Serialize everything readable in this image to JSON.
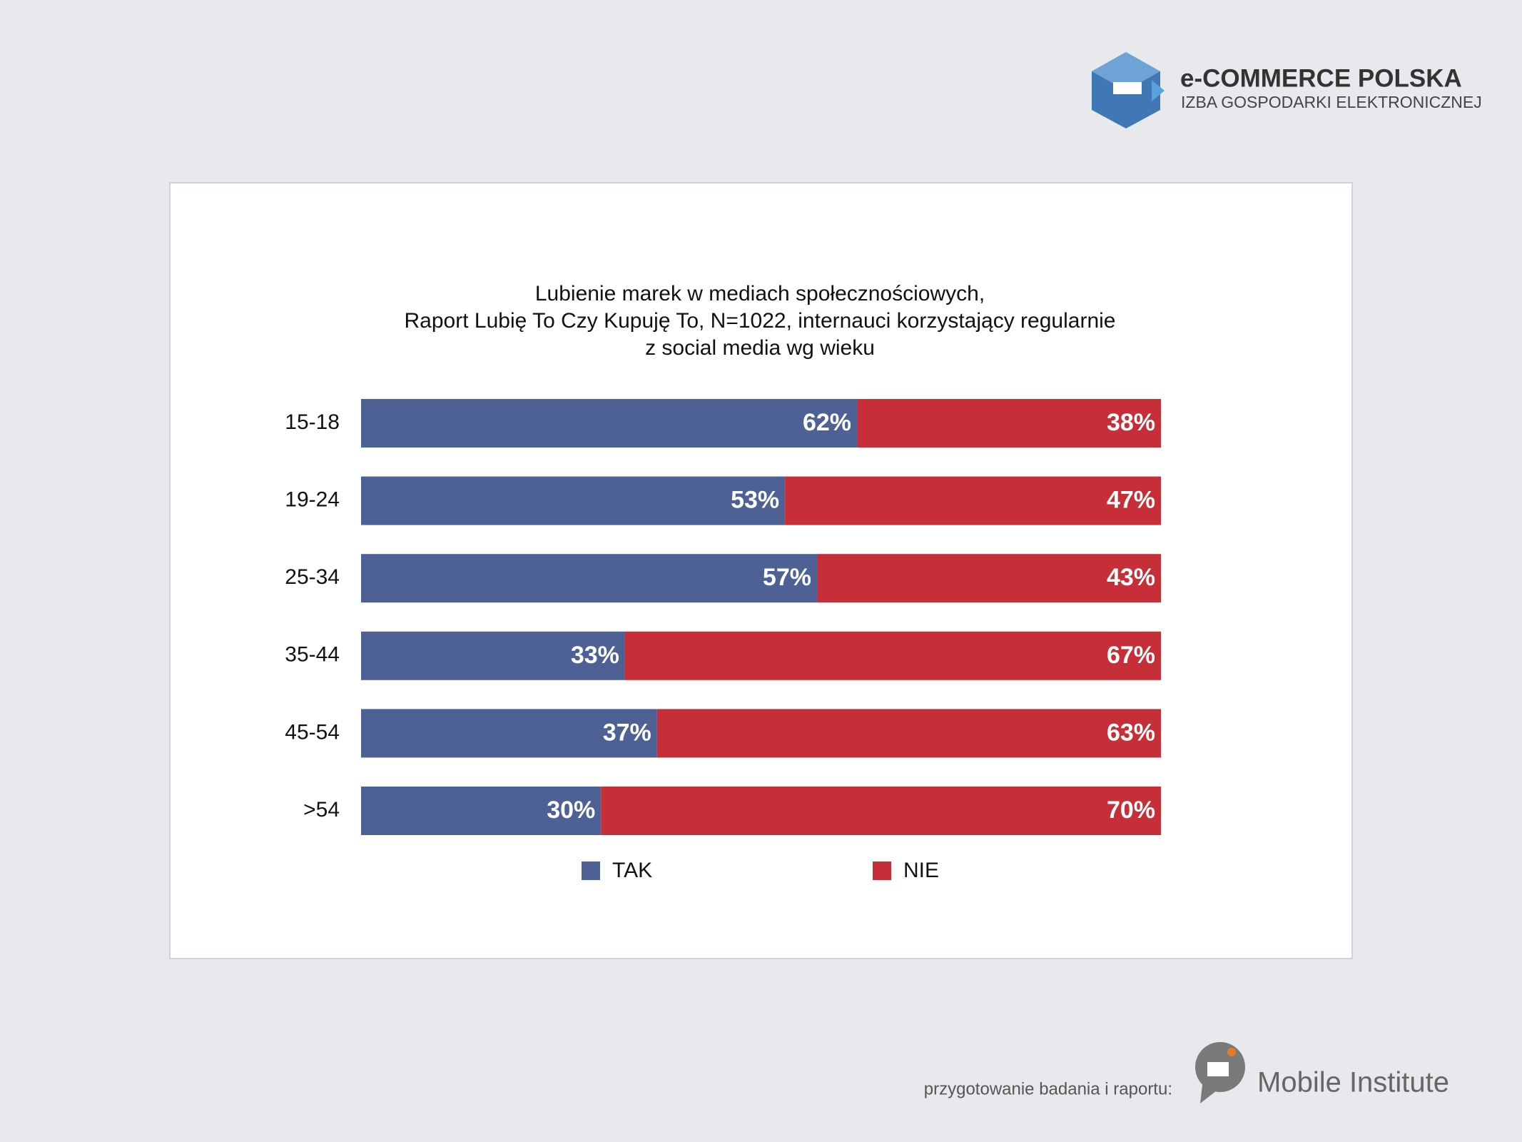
{
  "header": {
    "brand": "e-COMMERCE POLSKA",
    "subtitle": "IZBA GOSPODARKI ELEKTRONICZNEJ"
  },
  "chart_data": {
    "type": "bar",
    "orientation": "horizontal",
    "stacked": true,
    "title": [
      "Lubienie marek w  mediach społecznościowych,",
      "Raport Lubię To Czy Kupuję To, N=1022, internauci korzystający regularnie",
      "z social media wg wieku"
    ],
    "categories": [
      "15-18",
      "19-24",
      "25-34",
      "35-44",
      "45-54",
      ">54"
    ],
    "series": [
      {
        "name": "TAK",
        "color": "#4e6195",
        "values": [
          62,
          53,
          57,
          33,
          37,
          30
        ],
        "value_labels": [
          "62%",
          "53%",
          "57%",
          "33%",
          "37%",
          "30%"
        ]
      },
      {
        "name": "NIE",
        "color": "#c62f38",
        "values": [
          38,
          47,
          43,
          67,
          63,
          70
        ],
        "value_labels": [
          "38%",
          "47%",
          "43%",
          "67%",
          "63%",
          "70%"
        ]
      }
    ],
    "legend": "bottom"
  },
  "footer": {
    "note": "przygotowanie badania i raportu:",
    "company": "Mobile Institute"
  }
}
